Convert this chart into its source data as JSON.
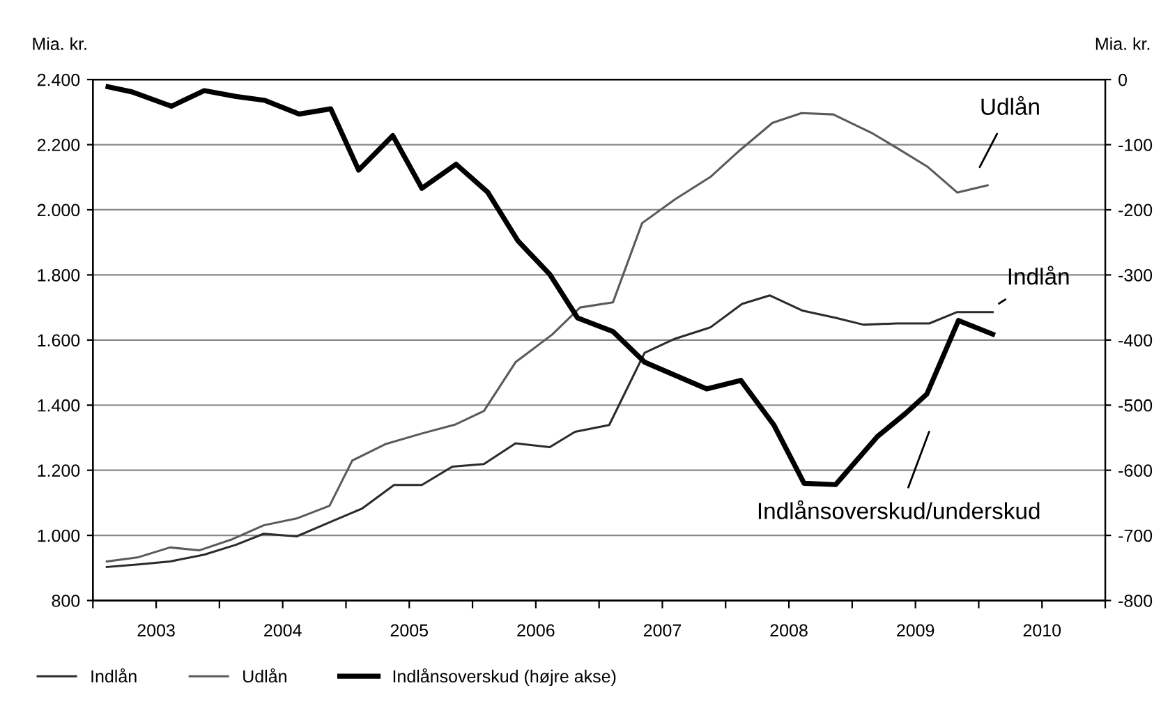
{
  "chart_data": {
    "type": "line",
    "ylabel": "Mia. kr.",
    "y2label": "Mia. kr.",
    "xlim": [
      2003,
      2011
    ],
    "xticks": [
      {
        "value": 2003,
        "label": null
      },
      {
        "value": 2003.5,
        "label": "2003"
      },
      {
        "value": 2004,
        "label": null
      },
      {
        "value": 2004.5,
        "label": "2004"
      },
      {
        "value": 2005,
        "label": null
      },
      {
        "value": 2005.5,
        "label": "2005"
      },
      {
        "value": 2006,
        "label": null
      },
      {
        "value": 2006.5,
        "label": "2006"
      },
      {
        "value": 2007,
        "label": null
      },
      {
        "value": 2007.5,
        "label": "2007"
      },
      {
        "value": 2008,
        "label": null
      },
      {
        "value": 2008.5,
        "label": "2008"
      },
      {
        "value": 2009,
        "label": null
      },
      {
        "value": 2009.5,
        "label": "2009"
      },
      {
        "value": 2010,
        "label": null
      },
      {
        "value": 2010.5,
        "label": "2010"
      },
      {
        "value": 2011,
        "label": null
      }
    ],
    "ylim": [
      800,
      2400
    ],
    "yticks": [
      800,
      {
        "value": 1000,
        "label": "1.000"
      },
      {
        "value": 1200,
        "label": "1.200"
      },
      {
        "value": 1400,
        "label": "1.400"
      },
      {
        "value": 1600,
        "label": "1.600"
      },
      {
        "value": 1800,
        "label": "1.800"
      },
      {
        "value": 2000,
        "label": "2.000"
      },
      {
        "value": 2200,
        "label": "2.200"
      },
      {
        "value": 2400,
        "label": "2.400"
      }
    ],
    "y2lim": [
      -800,
      0
    ],
    "y2ticks": [
      -800,
      -700,
      -600,
      -500,
      -400,
      -300,
      -200,
      -100,
      0
    ],
    "grid": "y",
    "legend": "bottom",
    "series": [
      {
        "name": "Indlån",
        "color": "#2b2b2b",
        "x": [
          2003.11,
          2003.36,
          2003.61,
          2003.88,
          2004.13,
          2004.35,
          2004.61,
          2004.87,
          2005.13,
          2005.38,
          2005.6,
          2005.84,
          2006.09,
          2006.34,
          2006.61,
          2006.81,
          2007.08,
          2007.36,
          2007.6,
          2007.88,
          2008.13,
          2008.35,
          2008.61,
          2008.87,
          2009.09,
          2009.35,
          2009.61,
          2009.83,
          2010.11
        ],
        "values": [
          903,
          911,
          920,
          941,
          971,
          1005,
          997,
          1040,
          1083,
          1155,
          1155,
          1211,
          1219,
          1283,
          1271,
          1318,
          1339,
          1561,
          1604,
          1639,
          1711,
          1737,
          1690,
          1668,
          1647,
          1651,
          1651,
          1686,
          1686
        ]
      },
      {
        "name": "Udlån",
        "color": "#5a5a5a",
        "x": [
          2003.11,
          2003.36,
          2003.61,
          2003.84,
          2004.1,
          2004.35,
          2004.61,
          2004.87,
          2005.05,
          2005.31,
          2005.6,
          2005.86,
          2006.09,
          2006.34,
          2006.63,
          2006.85,
          2007.11,
          2007.34,
          2007.6,
          2007.88,
          2008.11,
          2008.37,
          2008.6,
          2008.85,
          2009.15,
          2009.37,
          2009.6,
          2009.83,
          2010.07
        ],
        "values": [
          920,
          933,
          963,
          954,
          988,
          1031,
          1052,
          1091,
          1230,
          1280,
          1313,
          1340,
          1382,
          1532,
          1617,
          1700,
          1716,
          1959,
          2032,
          2101,
          2182,
          2267,
          2297,
          2293,
          2237,
          2186,
          2131,
          2053,
          2075
        ]
      },
      {
        "name": "Indlånsoverskud (højre akse)",
        "color": "#000000",
        "axis": "y2",
        "x": [
          2003.12,
          2003.31,
          2003.62,
          2003.88,
          2004.13,
          2004.36,
          2004.63,
          2004.88,
          2005.1,
          2005.37,
          2005.6,
          2005.87,
          2006.12,
          2006.36,
          2006.61,
          2006.83,
          2007.11,
          2007.36,
          2007.85,
          2008.12,
          2008.38,
          2008.62,
          2008.87,
          2009.2,
          2009.42,
          2009.59,
          2009.84,
          2010.11
        ],
        "values": [
          -11,
          -19,
          -41,
          -17,
          -26,
          -32,
          -53,
          -45,
          -139,
          -86,
          -167,
          -130,
          -173,
          -248,
          -299,
          -366,
          -387,
          -434,
          -475,
          -462,
          -530,
          -620,
          -622,
          -548,
          -513,
          -483,
          -370,
          -391
        ]
      }
    ],
    "annotations": [
      "Udlån",
      "Indlån",
      "Indlånsoverskud/underskud"
    ]
  }
}
